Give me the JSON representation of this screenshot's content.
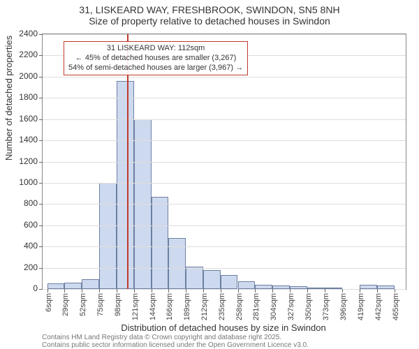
{
  "title": {
    "line1": "31, LISKEARD WAY, FRESHBROOK, SWINDON, SN5 8NH",
    "line2": "Size of property relative to detached houses in Swindon"
  },
  "ylabel": "Number of detached properties",
  "xlabel": "Distribution of detached houses by size in Swindon",
  "footer": {
    "line1": "Contains HM Land Registry data © Crown copyright and database right 2025.",
    "line2": "Contains public sector information licensed under the Open Government Licence v3.0."
  },
  "annotation": {
    "line1": "31 LISKEARD WAY: 112sqm",
    "line2": "← 45% of detached houses are smaller (3,267)",
    "line3": "54% of semi-detached houses are larger (3,967) →",
    "border_color": "#c0392b"
  },
  "marker_line": {
    "x_value": 112,
    "color": "#c0392b"
  },
  "chart": {
    "type": "histogram",
    "xlim": [
      0,
      480
    ],
    "ylim": [
      0,
      2400
    ],
    "ytick_step": 200,
    "bar_fill": "#cdd9ee",
    "bar_stroke": "#6c7fa3",
    "grid_color": "#dddddd",
    "background_color": "#ffffff",
    "xtick_values": [
      6,
      29,
      52,
      75,
      98,
      121,
      144,
      166,
      189,
      212,
      235,
      258,
      281,
      304,
      327,
      350,
      373,
      396,
      419,
      442,
      465
    ],
    "xtick_unit": "sqm",
    "bars": [
      {
        "x0": 6,
        "x1": 29,
        "y": 50
      },
      {
        "x0": 29,
        "x1": 52,
        "y": 60
      },
      {
        "x0": 52,
        "x1": 75,
        "y": 90
      },
      {
        "x0": 75,
        "x1": 98,
        "y": 1000
      },
      {
        "x0": 98,
        "x1": 121,
        "y": 1960
      },
      {
        "x0": 121,
        "x1": 144,
        "y": 1600
      },
      {
        "x0": 144,
        "x1": 166,
        "y": 870
      },
      {
        "x0": 166,
        "x1": 189,
        "y": 480
      },
      {
        "x0": 189,
        "x1": 212,
        "y": 210
      },
      {
        "x0": 212,
        "x1": 235,
        "y": 180
      },
      {
        "x0": 235,
        "x1": 258,
        "y": 130
      },
      {
        "x0": 258,
        "x1": 281,
        "y": 70
      },
      {
        "x0": 281,
        "x1": 304,
        "y": 40
      },
      {
        "x0": 304,
        "x1": 327,
        "y": 35
      },
      {
        "x0": 327,
        "x1": 350,
        "y": 25
      },
      {
        "x0": 350,
        "x1": 373,
        "y": 15
      },
      {
        "x0": 373,
        "x1": 396,
        "y": 10
      },
      {
        "x0": 419,
        "x1": 442,
        "y": 40
      },
      {
        "x0": 442,
        "x1": 465,
        "y": 30
      }
    ]
  }
}
